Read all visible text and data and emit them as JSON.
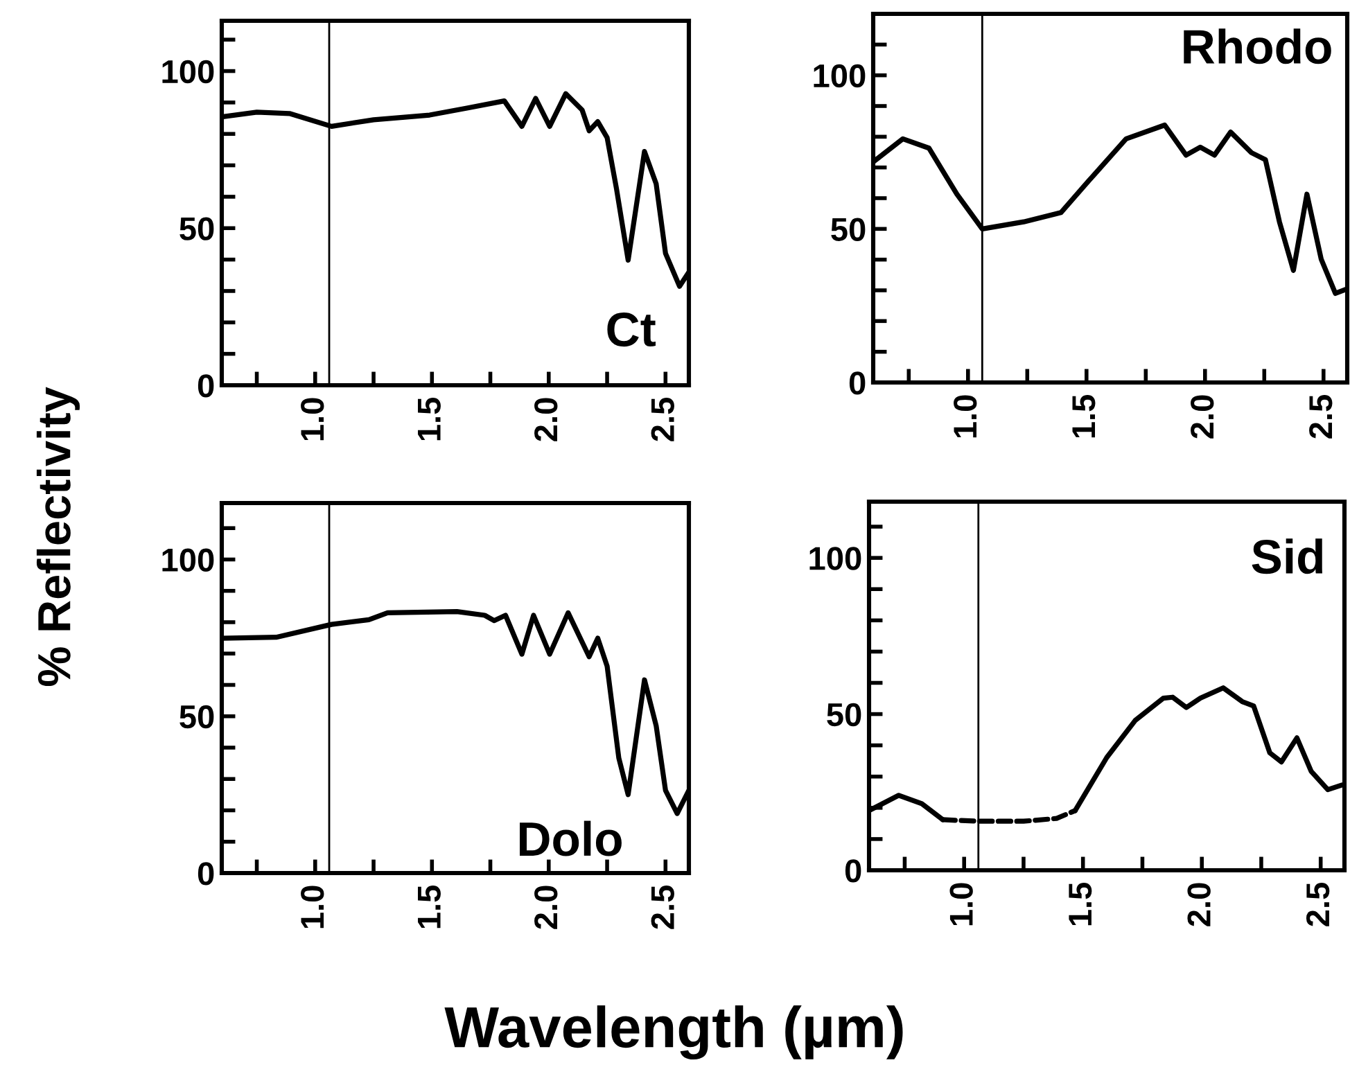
{
  "chart_data": [
    {
      "type": "line",
      "ylabel": "% Reflectivity",
      "annotations": [
        "Ct"
      ],
      "xlim": [
        0.6,
        2.6
      ],
      "ylim": [
        0,
        116
      ],
      "grid": false,
      "line_style": "solid",
      "marker": "none",
      "xticks": [
        {
          "value": 0.75,
          "label": null
        },
        {
          "value": 1.0,
          "label": "1.0"
        },
        {
          "value": 1.25,
          "label": null
        },
        {
          "value": 1.5,
          "label": "1.5"
        },
        {
          "value": 1.75,
          "label": null
        },
        {
          "value": 2.0,
          "label": "2.0"
        },
        {
          "value": 2.25,
          "label": null
        },
        {
          "value": 2.5,
          "label": "2.5"
        }
      ],
      "yticks": [
        0,
        {
          "value": 10,
          "label": null
        },
        {
          "value": 20,
          "label": null
        },
        {
          "value": 30,
          "label": null
        },
        {
          "value": 40,
          "label": null
        },
        50,
        {
          "value": 60,
          "label": null
        },
        {
          "value": 70,
          "label": null
        },
        {
          "value": 80,
          "label": null
        },
        {
          "value": 90,
          "label": null
        },
        100,
        {
          "value": 110,
          "label": null
        }
      ],
      "ref_lines": [
        {
          "axis": "x",
          "value": 1.06,
          "color": "#000000"
        }
      ],
      "series": [
        {
          "color": "#000000",
          "x": [
            0.6,
            0.75,
            0.89,
            1.07,
            1.25,
            1.49,
            1.65,
            1.81,
            1.885,
            1.944,
            2.004,
            2.073,
            2.143,
            2.173,
            2.21,
            2.25,
            2.29,
            2.34,
            2.41,
            2.46,
            2.5,
            2.56,
            2.6
          ],
          "values": [
            85.4,
            86.9,
            86.5,
            82.4,
            84.5,
            86,
            88.2,
            90.5,
            82.4,
            91.3,
            82.4,
            92.8,
            87.6,
            81,
            83.9,
            78.8,
            62.6,
            39.8,
            74.4,
            64.1,
            42,
            31.5,
            36
          ]
        }
      ]
    },
    {
      "type": "line",
      "annotations": [
        "Rhodo"
      ],
      "xlim": [
        0.6,
        2.6
      ],
      "ylim": [
        0,
        120
      ],
      "grid": false,
      "line_style": "solid",
      "marker": "none",
      "xticks": [
        {
          "value": 0.75,
          "label": null
        },
        {
          "value": 1.0,
          "label": "1.0"
        },
        {
          "value": 1.25,
          "label": null
        },
        {
          "value": 1.5,
          "label": "1.5"
        },
        {
          "value": 1.75,
          "label": null
        },
        {
          "value": 2.0,
          "label": "2.0"
        },
        {
          "value": 2.25,
          "label": null
        },
        {
          "value": 2.5,
          "label": "2.5"
        }
      ],
      "yticks": [
        0,
        {
          "value": 10,
          "label": null
        },
        {
          "value": 20,
          "label": null
        },
        {
          "value": 30,
          "label": null
        },
        {
          "value": 40,
          "label": null
        },
        50,
        {
          "value": 60,
          "label": null
        },
        {
          "value": 70,
          "label": null
        },
        {
          "value": 80,
          "label": null
        },
        {
          "value": 90,
          "label": null
        },
        100,
        {
          "value": 110,
          "label": null
        }
      ],
      "ref_lines": [
        {
          "axis": "x",
          "value": 1.06,
          "color": "#000000"
        }
      ],
      "series": [
        {
          "color": "#000000",
          "x": [
            0.6,
            0.725,
            0.835,
            0.953,
            1.06,
            1.235,
            1.392,
            1.51,
            1.667,
            1.83,
            1.92,
            1.98,
            2.04,
            2.108,
            2.196,
            2.255,
            2.314,
            2.373,
            2.43,
            2.49,
            2.55,
            2.6
          ],
          "values": [
            71.8,
            79.3,
            76.3,
            61.3,
            50,
            52.3,
            55.3,
            65.7,
            79.3,
            83.8,
            74,
            76.6,
            74,
            81.5,
            74.8,
            72.5,
            52.3,
            36.5,
            61.3,
            40.2,
            29,
            30.5
          ]
        }
      ]
    },
    {
      "type": "line",
      "xlabel": "Wavelength (µm)",
      "annotations": [
        "Dolo"
      ],
      "xlim": [
        0.6,
        2.6
      ],
      "ylim": [
        0,
        118
      ],
      "grid": false,
      "line_style": "solid",
      "marker": "none",
      "xticks": [
        {
          "value": 0.75,
          "label": null
        },
        {
          "value": 1.0,
          "label": "1.0"
        },
        {
          "value": 1.25,
          "label": null
        },
        {
          "value": 1.5,
          "label": "1.5"
        },
        {
          "value": 1.75,
          "label": null
        },
        {
          "value": 2.0,
          "label": "2.0"
        },
        {
          "value": 2.25,
          "label": null
        },
        {
          "value": 2.5,
          "label": "2.5"
        }
      ],
      "yticks": [
        0,
        {
          "value": 10,
          "label": null
        },
        {
          "value": 20,
          "label": null
        },
        {
          "value": 30,
          "label": null
        },
        {
          "value": 40,
          "label": null
        },
        50,
        {
          "value": 60,
          "label": null
        },
        {
          "value": 70,
          "label": null
        },
        {
          "value": 80,
          "label": null
        },
        {
          "value": 90,
          "label": null
        },
        100,
        {
          "value": 110,
          "label": null
        }
      ],
      "ref_lines": [
        {
          "axis": "x",
          "value": 1.06,
          "color": "#000000"
        }
      ],
      "series": [
        {
          "color": "#000000",
          "x": [
            0.6,
            0.833,
            1.07,
            1.23,
            1.31,
            1.607,
            1.726,
            1.766,
            1.815,
            1.885,
            1.935,
            2.004,
            2.083,
            2.173,
            2.21,
            2.25,
            2.3,
            2.34,
            2.41,
            2.46,
            2.5,
            2.55,
            2.6
          ],
          "values": [
            74.9,
            75.2,
            79.3,
            80.8,
            83,
            83.4,
            82.2,
            80.5,
            82.2,
            69.8,
            82.2,
            69.8,
            83,
            69,
            74.9,
            66,
            36.7,
            25,
            61.6,
            47,
            26.4,
            19,
            26.4
          ]
        }
      ]
    },
    {
      "type": "line",
      "annotations": [
        "Sid"
      ],
      "xlim": [
        0.6,
        2.6
      ],
      "ylim": [
        0,
        118
      ],
      "grid": false,
      "marker": "none",
      "xticks": [
        {
          "value": 0.75,
          "label": null
        },
        {
          "value": 1.0,
          "label": "1.0"
        },
        {
          "value": 1.25,
          "label": null
        },
        {
          "value": 1.5,
          "label": "1.5"
        },
        {
          "value": 1.75,
          "label": null
        },
        {
          "value": 2.0,
          "label": "2.0"
        },
        {
          "value": 2.25,
          "label": null
        },
        {
          "value": 2.5,
          "label": "2.5"
        }
      ],
      "yticks": [
        0,
        {
          "value": 10,
          "label": null
        },
        {
          "value": 20,
          "label": null
        },
        {
          "value": 30,
          "label": null
        },
        {
          "value": 40,
          "label": null
        },
        50,
        {
          "value": 60,
          "label": null
        },
        {
          "value": 70,
          "label": null
        },
        {
          "value": 80,
          "label": null
        },
        {
          "value": 90,
          "label": null
        },
        100,
        {
          "value": 110,
          "label": null
        }
      ],
      "ref_lines": [
        {
          "axis": "x",
          "value": 1.06,
          "color": "#000000"
        }
      ],
      "series": [
        {
          "color": "#000000",
          "line_style": "solid",
          "x": [
            0.6,
            0.725,
            0.822,
            0.91
          ],
          "values": [
            19.1,
            24,
            21.3,
            16.2
          ]
        },
        {
          "color": "#000000",
          "line_style": "dashed",
          "x": [
            0.91,
            1.057,
            1.25,
            1.389,
            1.467
          ],
          "values": [
            16.2,
            15.7,
            15.7,
            16.6,
            19.1
          ]
        },
        {
          "color": "#000000",
          "line_style": "solid",
          "x": [
            1.467,
            1.6,
            1.72,
            1.838,
            1.877,
            1.935,
            1.994,
            2.09,
            2.17,
            2.218,
            2.286,
            2.335,
            2.4,
            2.46,
            2.53,
            2.59
          ],
          "values": [
            19.1,
            36.1,
            48,
            55.1,
            55.4,
            52.1,
            55.1,
            58.4,
            54,
            52.6,
            37.6,
            34.7,
            42.4,
            31.7,
            25.8,
            27.3
          ]
        }
      ]
    }
  ]
}
